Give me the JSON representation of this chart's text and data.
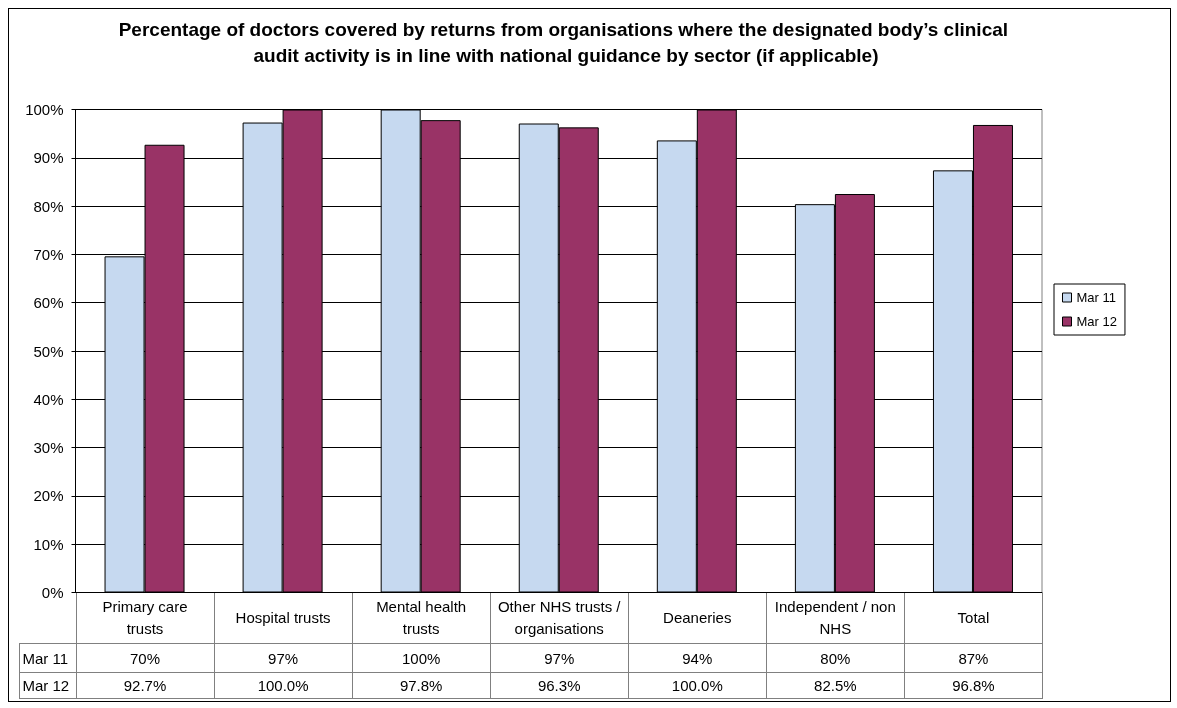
{
  "chart_data": {
    "type": "bar",
    "title": "Percentage of doctors covered by returns from organisations where the designated body’s clinical audit activity is in line with national guidance by sector (if applicable)",
    "categories": [
      "Primary care trusts",
      "Hospital trusts",
      "Mental health trusts",
      "Other NHS trusts / organisations",
      "Deaneries",
      "Independent / non NHS",
      "Total"
    ],
    "series": [
      {
        "name": "Mar 11",
        "color": "#c6d9f0",
        "values": [
          69.6,
          97.3,
          100,
          97.1,
          93.6,
          80.4,
          87.4
        ],
        "value_labels": [
          "70%",
          "97%",
          "100%",
          "97%",
          "94%",
          "80%",
          "87%"
        ]
      },
      {
        "name": "Mar 12",
        "color": "#993366",
        "values": [
          92.7,
          100,
          97.8,
          96.3,
          100,
          82.5,
          96.8
        ],
        "value_labels": [
          "92.7%",
          "100.0%",
          "97.8%",
          "96.3%",
          "100.0%",
          "82.5%",
          "96.8%"
        ]
      }
    ],
    "ylim": [
      0,
      100
    ],
    "yticks": [
      {
        "value": 0,
        "label": "0%"
      },
      {
        "value": 10,
        "label": "10%"
      },
      {
        "value": 20,
        "label": "20%"
      },
      {
        "value": 30,
        "label": "30%"
      },
      {
        "value": 40,
        "label": "40%"
      },
      {
        "value": 50,
        "label": "50%"
      },
      {
        "value": 60,
        "label": "60%"
      },
      {
        "value": 70,
        "label": "70%"
      },
      {
        "value": 80,
        "label": "80%"
      },
      {
        "value": 90,
        "label": "90%"
      },
      {
        "value": 100,
        "label": "100%"
      }
    ],
    "grid": "y",
    "legend": "right"
  }
}
